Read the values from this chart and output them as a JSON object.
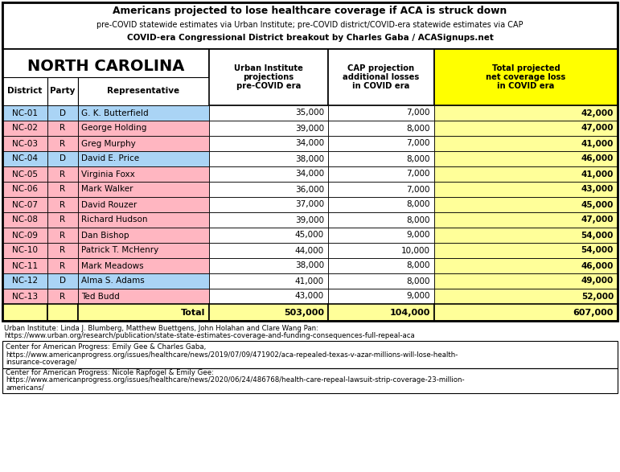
{
  "title_lines": [
    "Americans projected to lose healthcare coverage if ACA is struck down",
    "pre-COVID statewide estimates via Urban Institute; pre-COVID district/COVID-era statewide estimates via CAP",
    "COVID-era Congressional District breakout by Charles Gaba / ACASignups.net"
  ],
  "state": "NORTH CAROLINA",
  "col_headers": [
    "District",
    "Party",
    "Representative",
    "Urban Institute\nprojections\npre-COVID era",
    "CAP projection\nadditional losses\nin COVID era",
    "Total projected\nnet coverage loss\nin COVID era"
  ],
  "rows": [
    [
      "NC-01",
      "D",
      "G. K. Butterfield",
      "35,000",
      "7,000",
      "42,000"
    ],
    [
      "NC-02",
      "R",
      "George Holding",
      "39,000",
      "8,000",
      "47,000"
    ],
    [
      "NC-03",
      "R",
      "Greg Murphy",
      "34,000",
      "7,000",
      "41,000"
    ],
    [
      "NC-04",
      "D",
      "David E. Price",
      "38,000",
      "8,000",
      "46,000"
    ],
    [
      "NC-05",
      "R",
      "Virginia Foxx",
      "34,000",
      "7,000",
      "41,000"
    ],
    [
      "NC-06",
      "R",
      "Mark Walker",
      "36,000",
      "7,000",
      "43,000"
    ],
    [
      "NC-07",
      "R",
      "David Rouzer",
      "37,000",
      "8,000",
      "45,000"
    ],
    [
      "NC-08",
      "R",
      "Richard Hudson",
      "39,000",
      "8,000",
      "47,000"
    ],
    [
      "NC-09",
      "R",
      "Dan Bishop",
      "45,000",
      "9,000",
      "54,000"
    ],
    [
      "NC-10",
      "R",
      "Patrick T. McHenry",
      "44,000",
      "10,000",
      "54,000"
    ],
    [
      "NC-11",
      "R",
      "Mark Meadows",
      "38,000",
      "8,000",
      "46,000"
    ],
    [
      "NC-12",
      "D",
      "Alma S. Adams",
      "41,000",
      "8,000",
      "49,000"
    ],
    [
      "NC-13",
      "R",
      "Ted Budd",
      "43,000",
      "9,000",
      "52,000"
    ]
  ],
  "totals": [
    "",
    "",
    "Total",
    "503,000",
    "104,000",
    "607,000"
  ],
  "party_colors": {
    "D": "#aad4f5",
    "R": "#ffb6c1"
  },
  "total_row_bg": "#ffff99",
  "last_col_header_bg": "#ffff00",
  "last_col_data_bg": "#ffff99",
  "footnote_lines": [
    [
      "Urban Institute: Linda J. Blumberg, Matthew Buettgens, John Holahan and Clare Wang Pan:",
      "https://www.urban.org/research/publication/state-state-estimates-coverage-and-funding-consequences-full-repeal-aca"
    ],
    [
      "Center for American Progress: Emily Gee & Charles Gaba,",
      "https://www.americanprogress.org/issues/healthcare/news/2019/07/09/471902/aca-repealed-texas-v-azar-millions-will-lose-health-",
      "insurance-coverage/"
    ],
    [
      "Center for American Progress: Nicole Rapfogel & Emily Gee:",
      "https://www.americanprogress.org/issues/healthcare/news/2020/06/24/486768/health-care-repeal-lawsuit-strip-coverage-23-million-",
      "americans/"
    ]
  ]
}
